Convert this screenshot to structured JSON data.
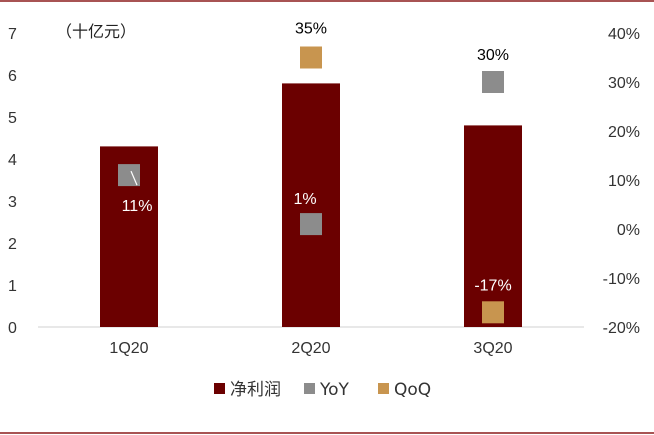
{
  "chart_data": {
    "type": "bar",
    "unit_label": "（十亿元）",
    "categories": [
      "1Q20",
      "2Q20",
      "3Q20"
    ],
    "left_axis": {
      "min": 0,
      "max": 7,
      "ticks": [
        "0",
        "1",
        "2",
        "3",
        "4",
        "5",
        "6",
        "7"
      ]
    },
    "right_axis": {
      "min": -20,
      "max": 40,
      "ticks": [
        "-20%",
        "-10%",
        "0%",
        "10%",
        "20%",
        "30%",
        "40%"
      ]
    },
    "series": [
      {
        "name": "净利润",
        "type": "bar",
        "axis": "left",
        "color": "#6B0000",
        "values": [
          4.3,
          5.8,
          4.8
        ]
      },
      {
        "name": "YoY",
        "type": "marker",
        "axis": "right",
        "color": "#8C8C8C",
        "values": [
          11,
          1,
          30
        ],
        "labels": [
          "11%",
          "1%",
          "30%"
        ]
      },
      {
        "name": "QoQ",
        "type": "marker",
        "axis": "right",
        "color": "#C8954F",
        "values": [
          null,
          35,
          -17
        ],
        "labels": [
          "",
          "35%",
          "-17%"
        ]
      }
    ],
    "legend_position": "bottom",
    "grid": false
  }
}
